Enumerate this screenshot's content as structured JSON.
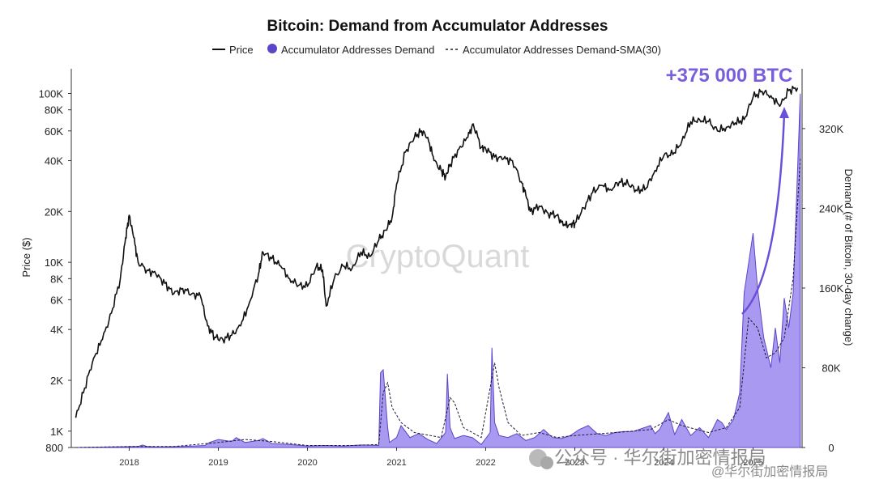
{
  "colors": {
    "price": "#111111",
    "demand_fill": "#9b87ef",
    "demand_stroke": "#5a46c8",
    "sma": "#1a1a33",
    "callout": "#7a5fdc"
  },
  "chart_data": {
    "type": "area",
    "title": "Bitcoin: Demand from Accumulator Addresses",
    "legend": {
      "placement": "top",
      "entries": [
        "Price",
        "Accumulator Addresses Demand",
        "Accumulator Addresses Demand-SMA(30)"
      ]
    },
    "x_ticks": [
      "2018",
      "2019",
      "2020",
      "2021",
      "2022",
      "2023",
      "2024",
      "2025"
    ],
    "x_range": [
      2017.35,
      2025.55
    ],
    "y_left": {
      "label": "Price ($)",
      "scale": "log",
      "range": [
        800,
        140000
      ],
      "ticks": [
        "800",
        "1K",
        "2K",
        "4K",
        "6K",
        "8K",
        "10K",
        "20K",
        "40K",
        "60K",
        "80K",
        "100K"
      ]
    },
    "y_right": {
      "label": "Demand (# of Bitcoin, 30-day change)",
      "range": [
        0,
        380000
      ],
      "ticks": [
        "0",
        "80K",
        "160K",
        "240K",
        "320K"
      ]
    },
    "annotation": "+375 000 BTC",
    "series": [
      {
        "name": "Price",
        "axis": "left",
        "x": [
          2017.4,
          2017.5,
          2017.6,
          2017.7,
          2017.8,
          2017.9,
          2017.96,
          2018.0,
          2018.05,
          2018.1,
          2018.2,
          2018.3,
          2018.4,
          2018.5,
          2018.6,
          2018.7,
          2018.8,
          2018.88,
          2018.96,
          2019.05,
          2019.15,
          2019.25,
          2019.35,
          2019.45,
          2019.5,
          2019.6,
          2019.7,
          2019.8,
          2019.9,
          2020.0,
          2020.1,
          2020.17,
          2020.21,
          2020.3,
          2020.4,
          2020.5,
          2020.6,
          2020.7,
          2020.8,
          2020.88,
          2020.95,
          2021.0,
          2021.1,
          2021.2,
          2021.28,
          2021.35,
          2021.42,
          2021.5,
          2021.55,
          2021.6,
          2021.7,
          2021.8,
          2021.86,
          2021.95,
          2022.0,
          2022.1,
          2022.2,
          2022.3,
          2022.4,
          2022.45,
          2022.5,
          2022.6,
          2022.7,
          2022.8,
          2022.87,
          2022.95,
          2023.0,
          2023.1,
          2023.2,
          2023.3,
          2023.4,
          2023.5,
          2023.6,
          2023.7,
          2023.8,
          2023.9,
          2024.0,
          2024.1,
          2024.2,
          2024.3,
          2024.4,
          2024.5,
          2024.6,
          2024.7,
          2024.8,
          2024.9,
          2025.0,
          2025.1,
          2025.2,
          2025.3,
          2025.4,
          2025.5
        ],
        "values": [
          1200,
          1800,
          2700,
          3500,
          5000,
          8000,
          14000,
          19000,
          14000,
          10000,
          9000,
          8500,
          7500,
          6500,
          7000,
          6500,
          6300,
          4200,
          3600,
          3500,
          3700,
          4200,
          5800,
          8500,
          11500,
          10500,
          9500,
          8000,
          7300,
          7200,
          9500,
          9000,
          5500,
          8000,
          9500,
          9200,
          11500,
          10800,
          13500,
          15500,
          18500,
          29000,
          45000,
          55000,
          60000,
          55000,
          40000,
          35000,
          32000,
          38000,
          47000,
          55000,
          66000,
          48000,
          47000,
          42000,
          41000,
          40000,
          30000,
          25000,
          20000,
          21500,
          19500,
          19000,
          16500,
          16800,
          17000,
          21000,
          26000,
          28500,
          27000,
          30000,
          29000,
          26500,
          27500,
          35000,
          43000,
          43500,
          52000,
          68000,
          70000,
          68000,
          60000,
          63000,
          67000,
          70000,
          95000,
          103000,
          97000,
          84000,
          104000,
          108000
        ]
      },
      {
        "name": "Accumulator Addresses Demand",
        "axis": "right",
        "x": [
          2017.4,
          2017.8,
          2018.1,
          2018.15,
          2018.2,
          2018.3,
          2018.6,
          2018.85,
          2018.9,
          2019.0,
          2019.15,
          2019.2,
          2019.3,
          2019.45,
          2019.5,
          2019.6,
          2019.8,
          2020.0,
          2020.2,
          2020.4,
          2020.6,
          2020.8,
          2020.82,
          2020.85,
          2020.9,
          2020.92,
          2021.0,
          2021.05,
          2021.15,
          2021.25,
          2021.35,
          2021.45,
          2021.55,
          2021.57,
          2021.6,
          2021.65,
          2021.75,
          2021.85,
          2021.95,
          2022.05,
          2022.07,
          2022.1,
          2022.15,
          2022.25,
          2022.35,
          2022.45,
          2022.55,
          2022.65,
          2022.75,
          2022.85,
          2022.95,
          2023.05,
          2023.15,
          2023.25,
          2023.35,
          2023.45,
          2023.55,
          2023.65,
          2023.75,
          2023.85,
          2023.9,
          2023.95,
          2024.05,
          2024.12,
          2024.2,
          2024.3,
          2024.4,
          2024.5,
          2024.6,
          2024.65,
          2024.7,
          2024.78,
          2024.85,
          2024.9,
          2025.0,
          2025.05,
          2025.12,
          2025.2,
          2025.25,
          2025.3,
          2025.35,
          2025.4,
          2025.45,
          2025.5,
          2025.53
        ],
        "values": [
          0,
          500,
          1000,
          2500,
          1000,
          500,
          1000,
          2000,
          5000,
          8000,
          6000,
          10000,
          5000,
          7000,
          9000,
          4000,
          3000,
          1500,
          2000,
          1500,
          2500,
          2000,
          75000,
          78000,
          20000,
          5000,
          10000,
          22000,
          10000,
          14000,
          8000,
          4000,
          15000,
          74000,
          20000,
          9000,
          12000,
          10000,
          3000,
          15000,
          100000,
          25000,
          12000,
          10000,
          14000,
          7000,
          10000,
          18000,
          10000,
          9000,
          12000,
          18000,
          22000,
          14000,
          12000,
          15000,
          16000,
          16000,
          19000,
          22000,
          14000,
          18000,
          35000,
          13000,
          28000,
          12000,
          20000,
          10000,
          28000,
          25000,
          18000,
          28000,
          55000,
          155000,
          215000,
          160000,
          110000,
          80000,
          120000,
          85000,
          150000,
          120000,
          155000,
          280000,
          355000
        ]
      },
      {
        "name": "Accumulator Addresses Demand-SMA(30)",
        "axis": "right",
        "x": [
          2017.4,
          2018.0,
          2018.5,
          2019.0,
          2019.3,
          2019.6,
          2020.0,
          2020.5,
          2020.8,
          2020.85,
          2020.9,
          2020.95,
          2021.05,
          2021.2,
          2021.5,
          2021.6,
          2021.65,
          2021.75,
          2021.95,
          2022.1,
          2022.15,
          2022.25,
          2022.4,
          2022.6,
          2022.8,
          2023.0,
          2023.3,
          2023.6,
          2023.85,
          2024.05,
          2024.2,
          2024.5,
          2024.7,
          2024.85,
          2024.95,
          2025.05,
          2025.15,
          2025.25,
          2025.35,
          2025.45,
          2025.53
        ],
        "values": [
          0,
          1000,
          1000,
          5000,
          8000,
          6000,
          2000,
          2000,
          3000,
          55000,
          65000,
          40000,
          25000,
          15000,
          10000,
          50000,
          45000,
          20000,
          10000,
          85000,
          60000,
          25000,
          12000,
          15000,
          10000,
          12000,
          14000,
          16000,
          18000,
          28000,
          22000,
          15000,
          20000,
          40000,
          130000,
          120000,
          90000,
          95000,
          110000,
          170000,
          290000
        ]
      }
    ]
  },
  "watermark": "CryptoQuant",
  "footer": {
    "channel": "公众号 · 华尔街加密情报局",
    "caption": "@华尔街加密情报局"
  }
}
